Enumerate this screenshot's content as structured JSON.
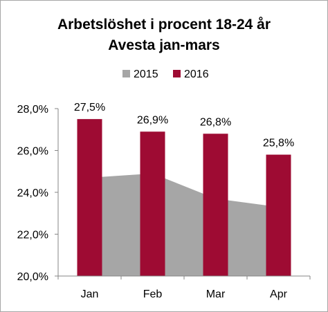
{
  "chart_data": {
    "type": "bar",
    "title": "Arbetslöshet  i procent 18-24 år",
    "subtitle": "Avesta jan-mars",
    "categories": [
      "Jan",
      "Feb",
      "Mar",
      "Apr"
    ],
    "series": [
      {
        "name": "2015",
        "kind": "area",
        "color": "#a6a6a6",
        "values": [
          24.7,
          24.9,
          23.7,
          23.3
        ]
      },
      {
        "name": "2016",
        "kind": "bar",
        "color": "#9e0b33",
        "values": [
          27.5,
          26.9,
          26.8,
          25.8
        ],
        "data_labels": [
          "27,5%",
          "26,9%",
          "26,8%",
          "25,8%"
        ]
      }
    ],
    "ylim": [
      20,
      28
    ],
    "yticks": [
      20,
      22,
      24,
      26,
      28
    ],
    "ytick_labels": [
      "20,0%",
      "22,0%",
      "24,0%",
      "26,0%",
      "28,0%"
    ],
    "legend": "top",
    "grid": false
  }
}
